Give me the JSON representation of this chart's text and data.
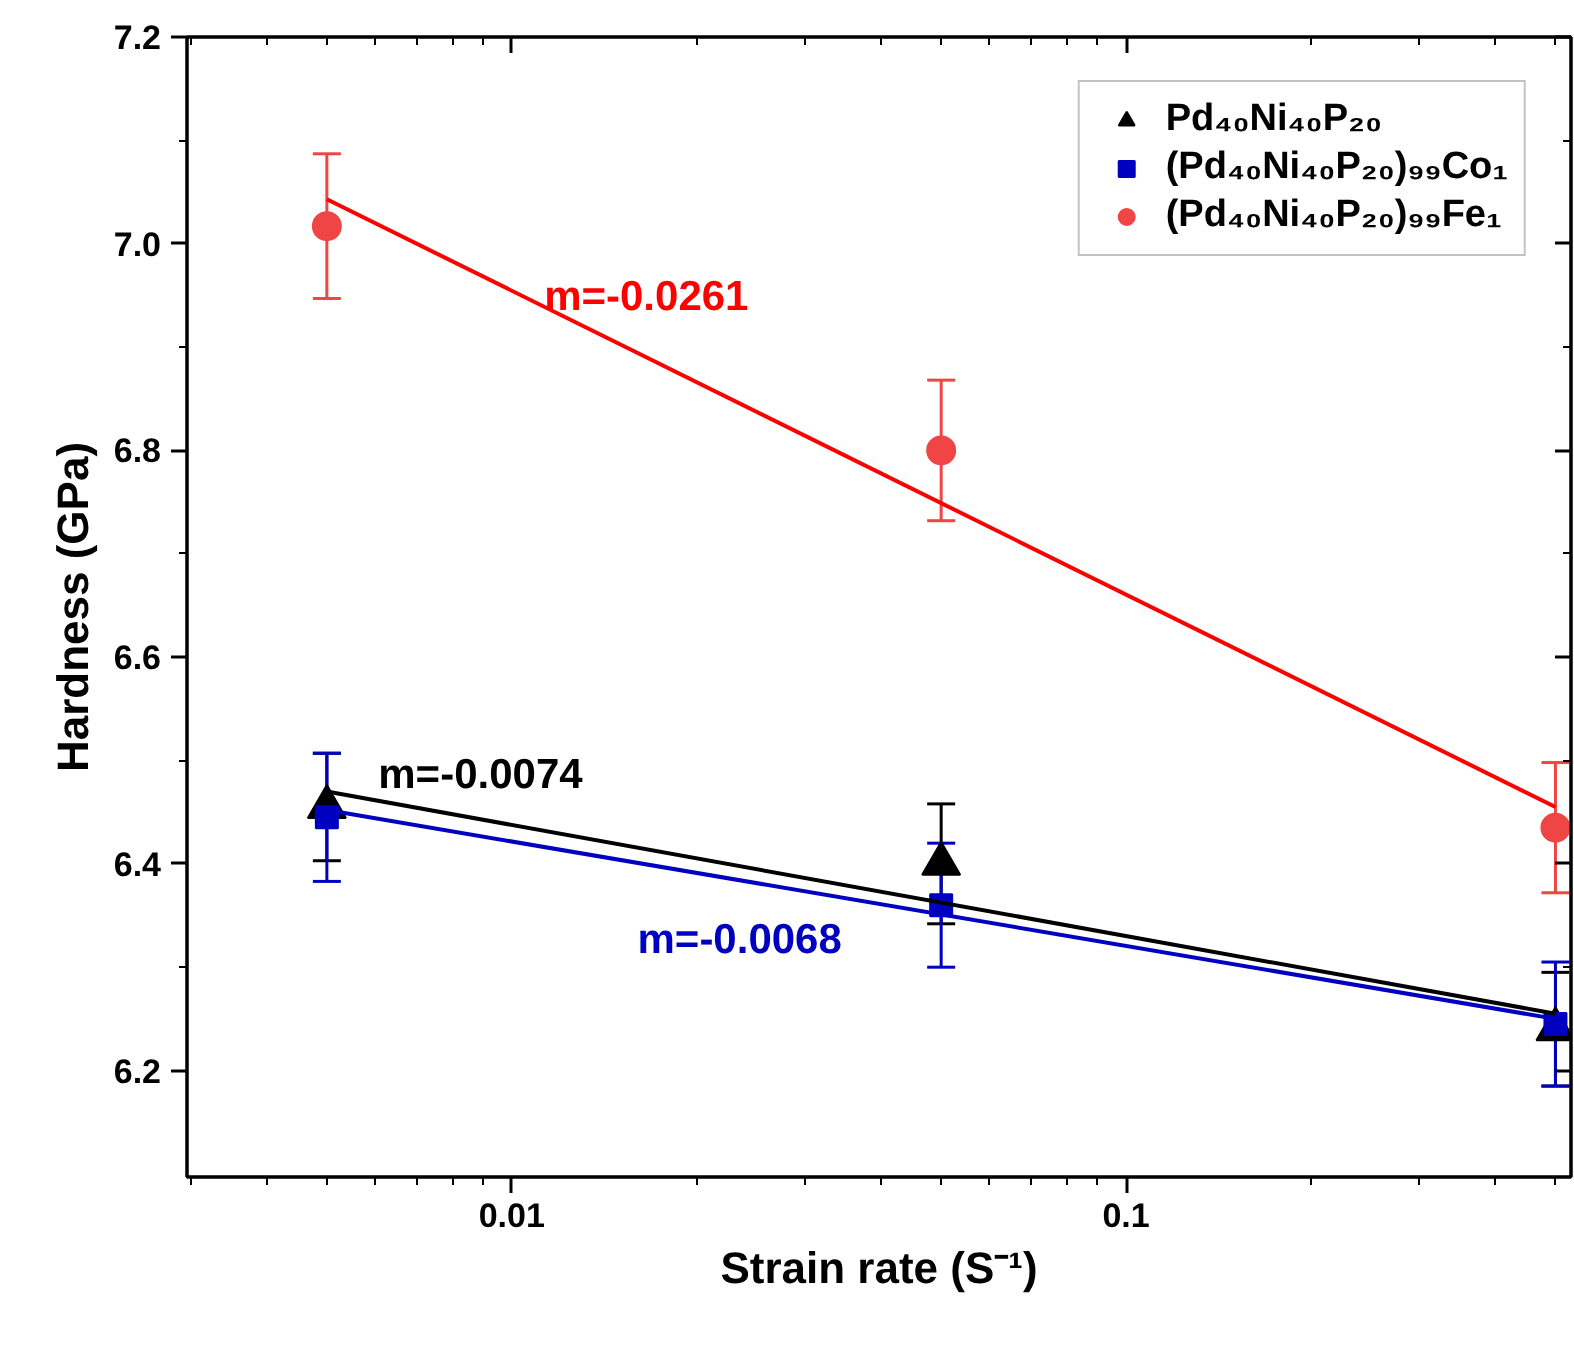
{
  "chart_data": {
    "type": "scatter",
    "xlabel": "Strain rate (S⁻¹)",
    "ylabel": "Hardness (GPa)",
    "log": "x",
    "xlim": [
      0.00296,
      0.53
    ],
    "ylim": [
      6.097,
      7.2
    ],
    "xticks": [
      {
        "value": 0.003,
        "label": null
      },
      {
        "value": 0.004,
        "label": null
      },
      {
        "value": 0.005,
        "label": null
      },
      {
        "value": 0.006,
        "label": null
      },
      {
        "value": 0.007,
        "label": null
      },
      {
        "value": 0.008,
        "label": null
      },
      {
        "value": 0.009,
        "label": null
      },
      0.01,
      {
        "value": 0.02,
        "label": null
      },
      {
        "value": 0.03,
        "label": null
      },
      {
        "value": 0.04,
        "label": null
      },
      {
        "value": 0.05,
        "label": null
      },
      {
        "value": 0.06,
        "label": null
      },
      {
        "value": 0.07,
        "label": null
      },
      {
        "value": 0.08,
        "label": null
      },
      {
        "value": 0.09,
        "label": null
      },
      0.1,
      {
        "value": 0.2,
        "label": null
      },
      {
        "value": 0.3,
        "label": null
      },
      {
        "value": 0.4,
        "label": null
      },
      {
        "value": 0.5,
        "label": null
      }
    ],
    "yticks": [
      {
        "value": 6.2,
        "label": "6.2"
      },
      {
        "value": 6.3,
        "label": null
      },
      {
        "value": 6.4,
        "label": "6.4"
      },
      {
        "value": 6.5,
        "label": null
      },
      {
        "value": 6.6,
        "label": "6.6"
      },
      {
        "value": 6.7,
        "label": null
      },
      {
        "value": 6.8,
        "label": "6.8"
      },
      {
        "value": 6.9,
        "label": null
      },
      {
        "value": 7.0,
        "label": "7.0"
      },
      {
        "value": 7.1,
        "label": null
      },
      {
        "value": 7.2,
        "label": "7.2"
      }
    ],
    "grid": false,
    "legend": "top right",
    "x": [
      0.005,
      0.05,
      0.5
    ],
    "series": [
      {
        "name": "Pd₄₀Ni₄₀P₂₀",
        "color": "#000000",
        "marker": "triangle",
        "values": [
          6.455,
          6.4,
          6.24
        ],
        "errors": [
          0.052,
          0.058,
          0.055
        ]
      },
      {
        "name": "(Pd₄₀Ni₄₀P₂₀)₉₉Co₁",
        "color": "#0000c0",
        "marker": "square",
        "values": [
          6.445,
          6.36,
          6.245
        ],
        "errors": [
          0.062,
          0.06,
          0.06
        ]
      },
      {
        "name": "(Pd₄₀Ni₄₀P₂₀)₉₉Fe₁",
        "color": "#f04545",
        "marker": "circle",
        "values": [
          7.017,
          6.8,
          6.435
        ],
        "errors": [
          0.07,
          0.068,
          0.063
        ]
      },
      {
        "type": "line",
        "color": "#ff0000",
        "values": [
          7.043,
          null,
          6.455
        ]
      },
      {
        "type": "line",
        "color": "#000000",
        "values": [
          6.47,
          null,
          6.255
        ]
      },
      {
        "type": "line",
        "color": "#0000c0",
        "values": [
          6.452,
          null,
          6.25
        ]
      }
    ],
    "annotations": [
      "m=-0.0261",
      "m=-0.0074",
      "m=-0.0068"
    ]
  }
}
